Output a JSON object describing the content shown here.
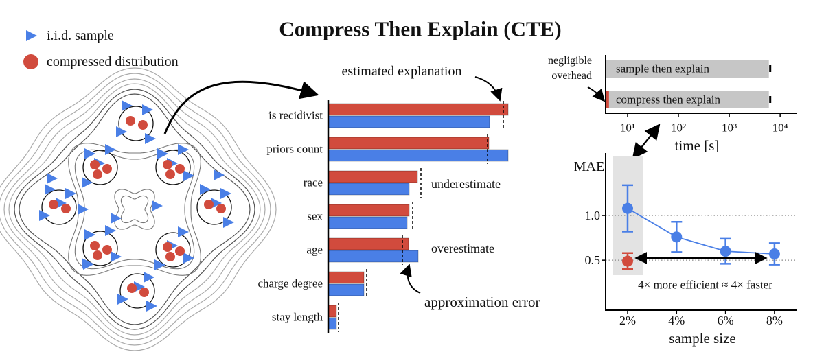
{
  "title": "Compress Then Explain (CTE)",
  "chart_data": [
    {
      "type": "bar",
      "orientation": "horizontal",
      "categories": [
        "is recidivist",
        "priors count",
        "race",
        "sex",
        "age",
        "charge degree",
        "stay length"
      ],
      "series": [
        {
          "name": "i.i.d. sample",
          "color": "#4a7fe6",
          "values": [
            0.235,
            0.262,
            0.118,
            0.115,
            0.131,
            0.052,
            0.012
          ]
        },
        {
          "name": "compressed distribution",
          "color": "#d14b3d",
          "values": [
            0.262,
            0.234,
            0.13,
            0.118,
            0.117,
            0.052,
            0.012
          ]
        }
      ],
      "reference": {
        "name": "estimated explanation",
        "values": [
          0.255,
          0.232,
          0.135,
          0.123,
          0.108,
          0.056,
          0.015
        ]
      },
      "xlim": [
        0,
        0.3
      ],
      "annotations": [
        "underestimate",
        "overestimate",
        "approximation error"
      ]
    },
    {
      "type": "bar",
      "orientation": "horizontal",
      "xscale": "log",
      "categories": [
        "sample then explain",
        "compress then explain"
      ],
      "values": [
        6000,
        6000
      ],
      "color": "#c6c6c6",
      "overhead": [
        null,
        4.3
      ],
      "overhead_color": "#d14b3d",
      "xlim": [
        3.7,
        21000
      ],
      "xticks": [
        {
          "value": 10,
          "label": "10¹"
        },
        {
          "value": 100,
          "label": "10²"
        },
        {
          "value": 1000,
          "label": "10³"
        },
        {
          "value": 10000,
          "label": "10⁴"
        }
      ],
      "xlabel": "time [s]",
      "annotation": "negligible overhead"
    },
    {
      "type": "line",
      "categories": [
        "2%",
        "4%",
        "6%",
        "8%"
      ],
      "series": [
        {
          "color": "#4a7fe6",
          "values": [
            1.08,
            0.76,
            0.6,
            0.57
          ],
          "errors": [
            0.26,
            0.17,
            0.14,
            0.12
          ]
        },
        {
          "color": "#d14b3d",
          "values": [
            0.49,
            null,
            null,
            null
          ],
          "errors": [
            0.09,
            null,
            null,
            null
          ]
        }
      ],
      "ylim": [
        -0.06,
        1.7
      ],
      "yticks": [
        0.5,
        {
          "value": 1,
          "label": "1.0"
        }
      ],
      "grid": true,
      "xlabel": "sample size",
      "ylabel": "MAE",
      "annotation": "4× more efficient ≈ 4× faster"
    }
  ]
}
